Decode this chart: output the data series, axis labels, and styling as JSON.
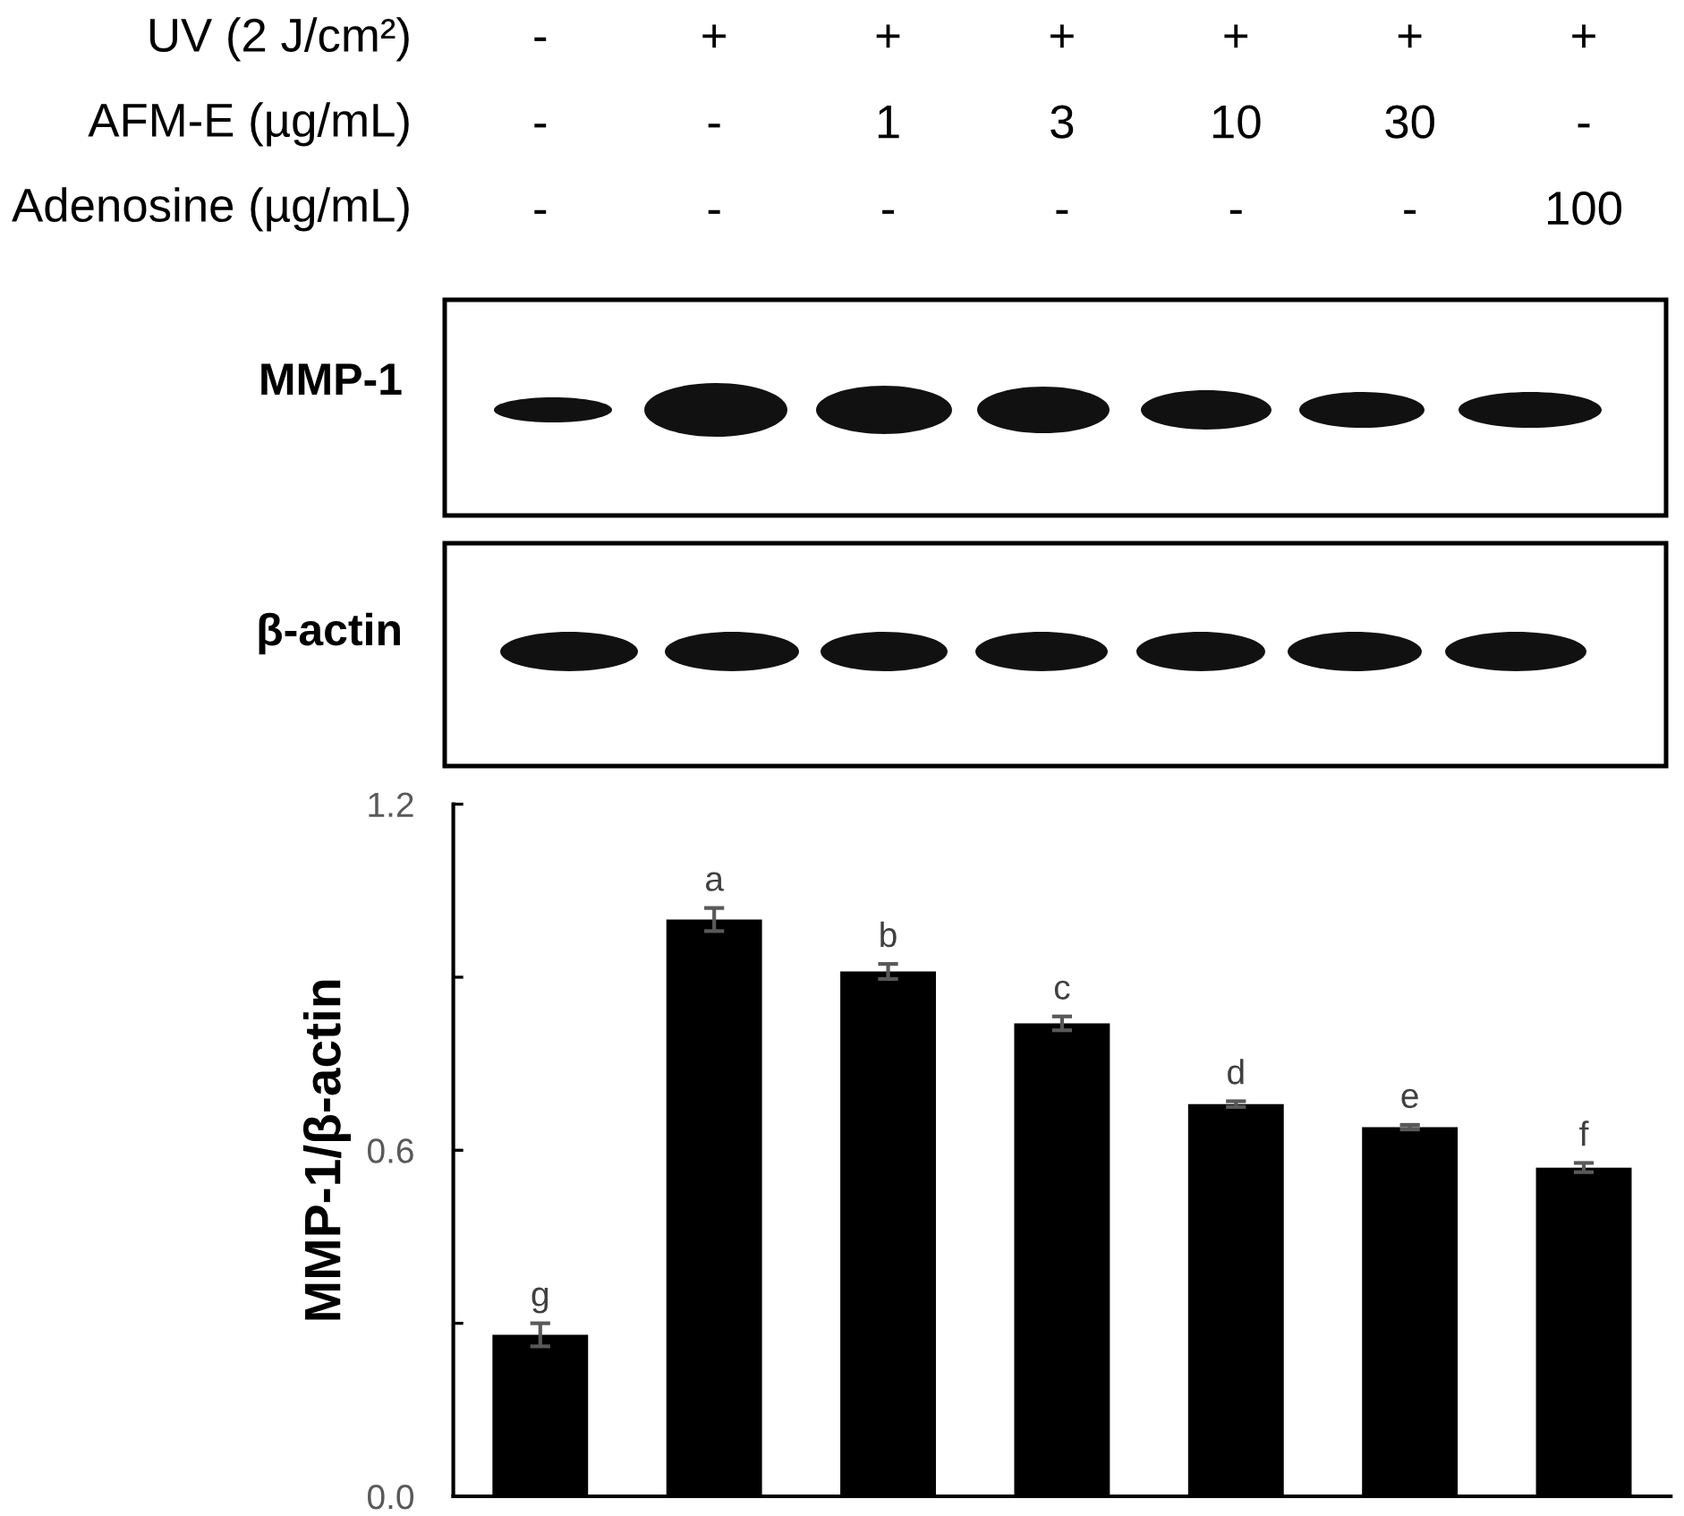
{
  "chart_data": {
    "type": "bar",
    "categories": [
      "-\n-\n-",
      "+\n-\n-",
      "+\n1\n-",
      "+\n3\n-",
      "+\n10\n-",
      "+\n30\n-",
      "+\n-\n100"
    ],
    "values": [
      0.28,
      1.0,
      0.91,
      0.82,
      0.68,
      0.64,
      0.57
    ],
    "errors": [
      0.02,
      0.02,
      0.013,
      0.012,
      0.005,
      0.004,
      0.008
    ],
    "value_labels": [
      "g",
      "a",
      "b",
      "c",
      "d",
      "e",
      "f"
    ],
    "color": "#000000",
    "ylabel": "MMP-1/β-actin",
    "ylim": [
      0.0,
      1.2
    ],
    "yticks": [
      {
        "value": 0,
        "label": "0.0"
      },
      {
        "value": 0.3,
        "label": null
      },
      0.6,
      {
        "value": 0.9,
        "label": null
      },
      1.2
    ],
    "annotations": [
      "UV (2 J/cm²)",
      "AFM-E (µg/mL)",
      "Adenosine (µg/mL)",
      "MMP-1",
      "β-actin"
    ]
  }
}
